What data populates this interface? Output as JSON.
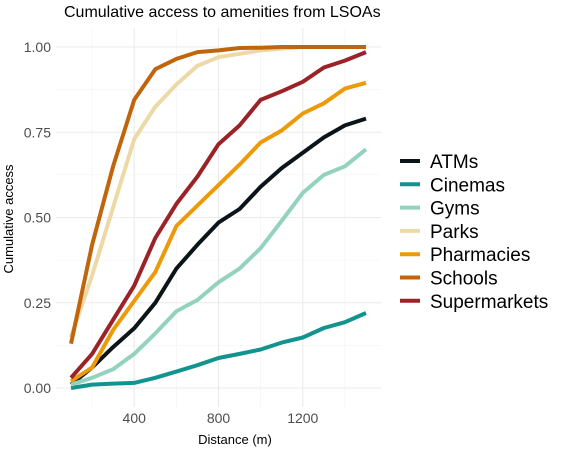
{
  "chart_data": {
    "type": "line",
    "title": "Cumulative access to amenities from LSOAs",
    "xlabel": "Distance (m)",
    "ylabel": "Cumulative access",
    "xlim": [
      100,
      1500
    ],
    "ylim": [
      0,
      1
    ],
    "x_ticks": [
      400,
      800,
      1200
    ],
    "y_ticks": [
      0,
      0.25,
      0.5,
      0.75,
      1
    ],
    "y_tick_labels": [
      "0.00",
      "0.25",
      "0.50",
      "0.75",
      "1.00"
    ],
    "grid": true,
    "legend_position": "right",
    "x": [
      100,
      200,
      300,
      400,
      500,
      600,
      700,
      800,
      900,
      1000,
      1100,
      1200,
      1300,
      1400,
      1500
    ],
    "series": [
      {
        "name": "ATMs",
        "color": "#0b1419",
        "values": [
          0.01,
          0.06,
          0.12,
          0.175,
          0.25,
          0.35,
          0.42,
          0.485,
          0.525,
          0.59,
          0.645,
          0.69,
          0.735,
          0.77,
          0.79
        ]
      },
      {
        "name": "Cinemas",
        "color": "#12938f",
        "values": [
          0.0,
          0.01,
          0.013,
          0.015,
          0.03,
          0.048,
          0.067,
          0.088,
          0.1,
          0.113,
          0.133,
          0.148,
          0.176,
          0.193,
          0.22
        ]
      },
      {
        "name": "Gyms",
        "color": "#93d2bd",
        "values": [
          0.01,
          0.03,
          0.055,
          0.1,
          0.16,
          0.225,
          0.258,
          0.31,
          0.35,
          0.41,
          0.49,
          0.572,
          0.625,
          0.65,
          0.7
        ]
      },
      {
        "name": "Parks",
        "color": "#ecd9a6",
        "values": [
          0.15,
          0.33,
          0.53,
          0.73,
          0.825,
          0.89,
          0.945,
          0.97,
          0.98,
          0.99,
          0.995,
          1.0,
          1.0,
          1.0,
          1.0
        ]
      },
      {
        "name": "Pharmacies",
        "color": "#ec9a07",
        "values": [
          0.02,
          0.06,
          0.17,
          0.255,
          0.34,
          0.475,
          0.535,
          0.595,
          0.655,
          0.72,
          0.755,
          0.805,
          0.835,
          0.878,
          0.895
        ]
      },
      {
        "name": "Schools",
        "color": "#c1650c",
        "values": [
          0.13,
          0.42,
          0.65,
          0.845,
          0.935,
          0.965,
          0.985,
          0.99,
          0.997,
          0.998,
          1.0,
          1.0,
          1.0,
          1.0,
          1.0
        ]
      },
      {
        "name": "Supermarkets",
        "color": "#9b2226",
        "values": [
          0.03,
          0.1,
          0.2,
          0.3,
          0.44,
          0.54,
          0.62,
          0.715,
          0.77,
          0.845,
          0.87,
          0.898,
          0.94,
          0.96,
          0.985
        ]
      }
    ]
  }
}
